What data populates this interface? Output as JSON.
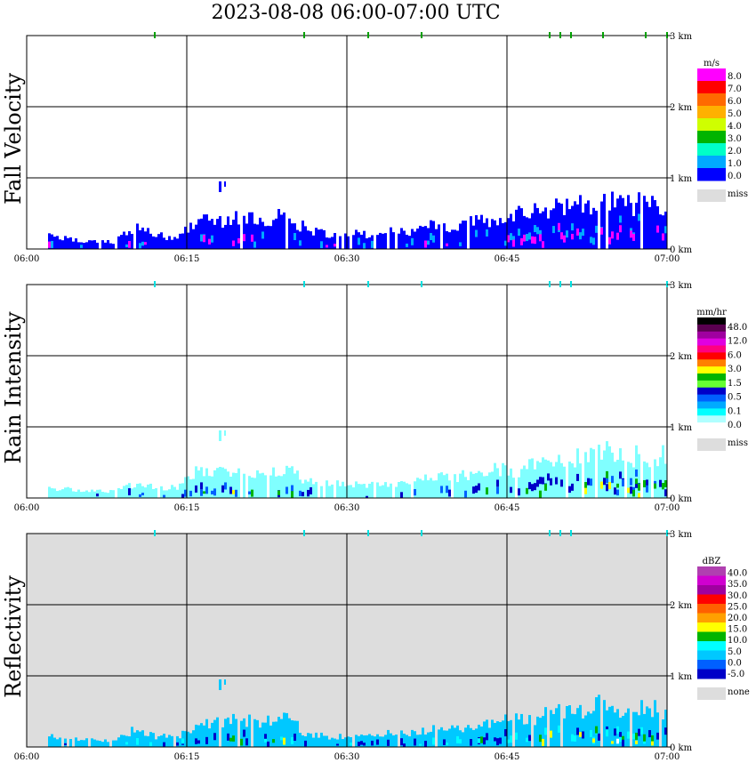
{
  "title": "2023-08-08   06:00-07:00 UTC",
  "x_ticks": [
    "06:00",
    "06:15",
    "06:30",
    "06:45",
    "07:00"
  ],
  "y_ticks": [
    "0 km",
    "1 km",
    "2 km",
    "3 km"
  ],
  "chart_data": [
    {
      "type": "heatmap",
      "ylabel": "Fall Velocity",
      "legend_unit": "m/s",
      "legend_labels": [
        "8.0",
        "7.0",
        "6.0",
        "5.0",
        "4.0",
        "3.0",
        "2.0",
        "1.0",
        "0.0"
      ],
      "legend_colors": [
        "#ff00ff",
        "#ff0000",
        "#ff6a00",
        "#ffb000",
        "#cfff00",
        "#00b400",
        "#00ffc8",
        "#00aaff",
        "#0000ff"
      ],
      "missing_label": "miss",
      "missing_color": "#dddddd",
      "background": "#ffffff",
      "main_color": "#0000ff",
      "accent_colors": [
        "#00aaff",
        "#ff00ff"
      ],
      "spike_color": "#00a000",
      "xlim": [
        "06:00",
        "07:00"
      ],
      "ylim_km": [
        0,
        3
      ],
      "echo_top_km": [
        {
          "t": "06:02",
          "top": 0.2
        },
        {
          "t": "06:06",
          "top": 0.1
        },
        {
          "t": "06:08",
          "top": 0.1
        },
        {
          "t": "06:10",
          "top": 0.3
        },
        {
          "t": "06:12",
          "top": 0.2
        },
        {
          "t": "06:14",
          "top": 0.15
        },
        {
          "t": "06:16",
          "top": 0.45
        },
        {
          "t": "06:18",
          "top": 0.4
        },
        {
          "t": "06:20",
          "top": 0.5
        },
        {
          "t": "06:22",
          "top": 0.35
        },
        {
          "t": "06:24",
          "top": 0.5
        },
        {
          "t": "06:26",
          "top": 0.3
        },
        {
          "t": "06:28",
          "top": 0.2
        },
        {
          "t": "06:30",
          "top": 0.25
        },
        {
          "t": "06:32",
          "top": 0.2
        },
        {
          "t": "06:34",
          "top": 0.25
        },
        {
          "t": "06:36",
          "top": 0.25
        },
        {
          "t": "06:38",
          "top": 0.35
        },
        {
          "t": "06:40",
          "top": 0.3
        },
        {
          "t": "06:42",
          "top": 0.4
        },
        {
          "t": "06:44",
          "top": 0.45
        },
        {
          "t": "06:46",
          "top": 0.5
        },
        {
          "t": "06:48",
          "top": 0.55
        },
        {
          "t": "06:50",
          "top": 0.6
        },
        {
          "t": "06:52",
          "top": 0.65
        },
        {
          "t": "06:54",
          "top": 0.7
        },
        {
          "t": "06:56",
          "top": 0.65
        },
        {
          "t": "06:58",
          "top": 0.65
        },
        {
          "t": "07:00",
          "top": 0.65
        }
      ],
      "isolated_echoes": [
        {
          "t": "06:18",
          "bottom_km": 0.8,
          "top_km": 0.95
        }
      ],
      "spikes_3km": [
        "06:12",
        "06:26",
        "06:32",
        "06:37",
        "06:49",
        "06:50",
        "06:51",
        "06:54",
        "06:58",
        "07:00"
      ]
    },
    {
      "type": "heatmap",
      "ylabel": "Rain Intensity",
      "legend_unit": "mm/hr",
      "legend_labels": [
        "48.0",
        "12.0",
        "6.0",
        "3.0",
        "1.5",
        "0.5",
        "0.1",
        "0.0"
      ],
      "legend_colors": [
        "#000000",
        "#5a0050",
        "#a000a0",
        "#e000e0",
        "#ff0080",
        "#ff0000",
        "#ff8000",
        "#ffff00",
        "#00b400",
        "#66ff33",
        "#0000c8",
        "#0060ff",
        "#00aaff",
        "#00ffff",
        "#b0ffff",
        "#ffffff"
      ],
      "missing_label": "miss",
      "missing_color": "#dddddd",
      "background": "#ffffff",
      "main_color": "#80ffff",
      "accent_colors": [
        "#0000c8",
        "#0060ff",
        "#00b400",
        "#ffff00"
      ],
      "spike_color": "#00e0e0",
      "xlim": [
        "06:00",
        "07:00"
      ],
      "ylim_km": [
        0,
        3
      ],
      "echo_top_km": [
        {
          "t": "06:02",
          "top": 0.15
        },
        {
          "t": "06:06",
          "top": 0.1
        },
        {
          "t": "06:08",
          "top": 0.1
        },
        {
          "t": "06:10",
          "top": 0.2
        },
        {
          "t": "06:12",
          "top": 0.15
        },
        {
          "t": "06:14",
          "top": 0.15
        },
        {
          "t": "06:16",
          "top": 0.45
        },
        {
          "t": "06:18",
          "top": 0.35
        },
        {
          "t": "06:20",
          "top": 0.45
        },
        {
          "t": "06:22",
          "top": 0.35
        },
        {
          "t": "06:24",
          "top": 0.45
        },
        {
          "t": "06:26",
          "top": 0.25
        },
        {
          "t": "06:28",
          "top": 0.2
        },
        {
          "t": "06:30",
          "top": 0.2
        },
        {
          "t": "06:32",
          "top": 0.2
        },
        {
          "t": "06:34",
          "top": 0.2
        },
        {
          "t": "06:36",
          "top": 0.25
        },
        {
          "t": "06:38",
          "top": 0.3
        },
        {
          "t": "06:40",
          "top": 0.3
        },
        {
          "t": "06:42",
          "top": 0.35
        },
        {
          "t": "06:44",
          "top": 0.4
        },
        {
          "t": "06:46",
          "top": 0.4
        },
        {
          "t": "06:48",
          "top": 0.5
        },
        {
          "t": "06:50",
          "top": 0.55
        },
        {
          "t": "06:52",
          "top": 0.6
        },
        {
          "t": "06:54",
          "top": 0.65
        },
        {
          "t": "06:56",
          "top": 0.6
        },
        {
          "t": "06:58",
          "top": 0.6
        },
        {
          "t": "07:00",
          "top": 0.6
        }
      ],
      "isolated_echoes": [
        {
          "t": "06:18",
          "bottom_km": 0.8,
          "top_km": 0.95
        }
      ],
      "spikes_3km": [
        "06:12",
        "06:26",
        "06:32",
        "06:37",
        "06:49",
        "06:50",
        "06:51",
        "07:00"
      ]
    },
    {
      "type": "heatmap",
      "ylabel": "Reflectivity",
      "legend_unit": "dBZ",
      "legend_labels": [
        "40.0",
        "35.0",
        "30.0",
        "25.0",
        "20.0",
        "15.0",
        "10.0",
        "5.0",
        "0.0",
        "-5.0"
      ],
      "legend_colors": [
        "#b040b0",
        "#d000d0",
        "#a000a0",
        "#ff0000",
        "#ff6000",
        "#ffa000",
        "#ffff00",
        "#00b400",
        "#00ffff",
        "#00c8ff",
        "#0060ff",
        "#0000c8"
      ],
      "missing_label": "none",
      "missing_color": "#dddddd",
      "background": "#dddddd",
      "main_color": "#00c8ff",
      "accent_colors": [
        "#0000c8",
        "#00ffff",
        "#00b400",
        "#ffff00",
        "#ffffff"
      ],
      "spike_color": "#00e0e0",
      "xlim": [
        "06:00",
        "07:00"
      ],
      "ylim_km": [
        0,
        3
      ],
      "echo_top_km": [
        {
          "t": "06:02",
          "top": 0.15
        },
        {
          "t": "06:06",
          "top": 0.1
        },
        {
          "t": "06:08",
          "top": 0.1
        },
        {
          "t": "06:10",
          "top": 0.25
        },
        {
          "t": "06:12",
          "top": 0.15
        },
        {
          "t": "06:14",
          "top": 0.15
        },
        {
          "t": "06:16",
          "top": 0.3
        },
        {
          "t": "06:18",
          "top": 0.35
        },
        {
          "t": "06:20",
          "top": 0.4
        },
        {
          "t": "06:22",
          "top": 0.35
        },
        {
          "t": "06:24",
          "top": 0.45
        },
        {
          "t": "06:26",
          "top": 0.2
        },
        {
          "t": "06:28",
          "top": 0.15
        },
        {
          "t": "06:30",
          "top": 0.15
        },
        {
          "t": "06:32",
          "top": 0.15
        },
        {
          "t": "06:34",
          "top": 0.2
        },
        {
          "t": "06:36",
          "top": 0.2
        },
        {
          "t": "06:38",
          "top": 0.25
        },
        {
          "t": "06:40",
          "top": 0.25
        },
        {
          "t": "06:42",
          "top": 0.3
        },
        {
          "t": "06:44",
          "top": 0.35
        },
        {
          "t": "06:46",
          "top": 0.4
        },
        {
          "t": "06:48",
          "top": 0.45
        },
        {
          "t": "06:50",
          "top": 0.5
        },
        {
          "t": "06:52",
          "top": 0.55
        },
        {
          "t": "06:54",
          "top": 0.6
        },
        {
          "t": "06:56",
          "top": 0.55
        },
        {
          "t": "06:58",
          "top": 0.55
        },
        {
          "t": "07:00",
          "top": 0.55
        }
      ],
      "isolated_echoes": [
        {
          "t": "06:18",
          "bottom_km": 0.8,
          "top_km": 0.95
        }
      ],
      "spikes_3km": [
        "06:12",
        "06:26",
        "06:32",
        "06:37",
        "06:49",
        "06:50",
        "06:51",
        "07:00"
      ]
    }
  ]
}
